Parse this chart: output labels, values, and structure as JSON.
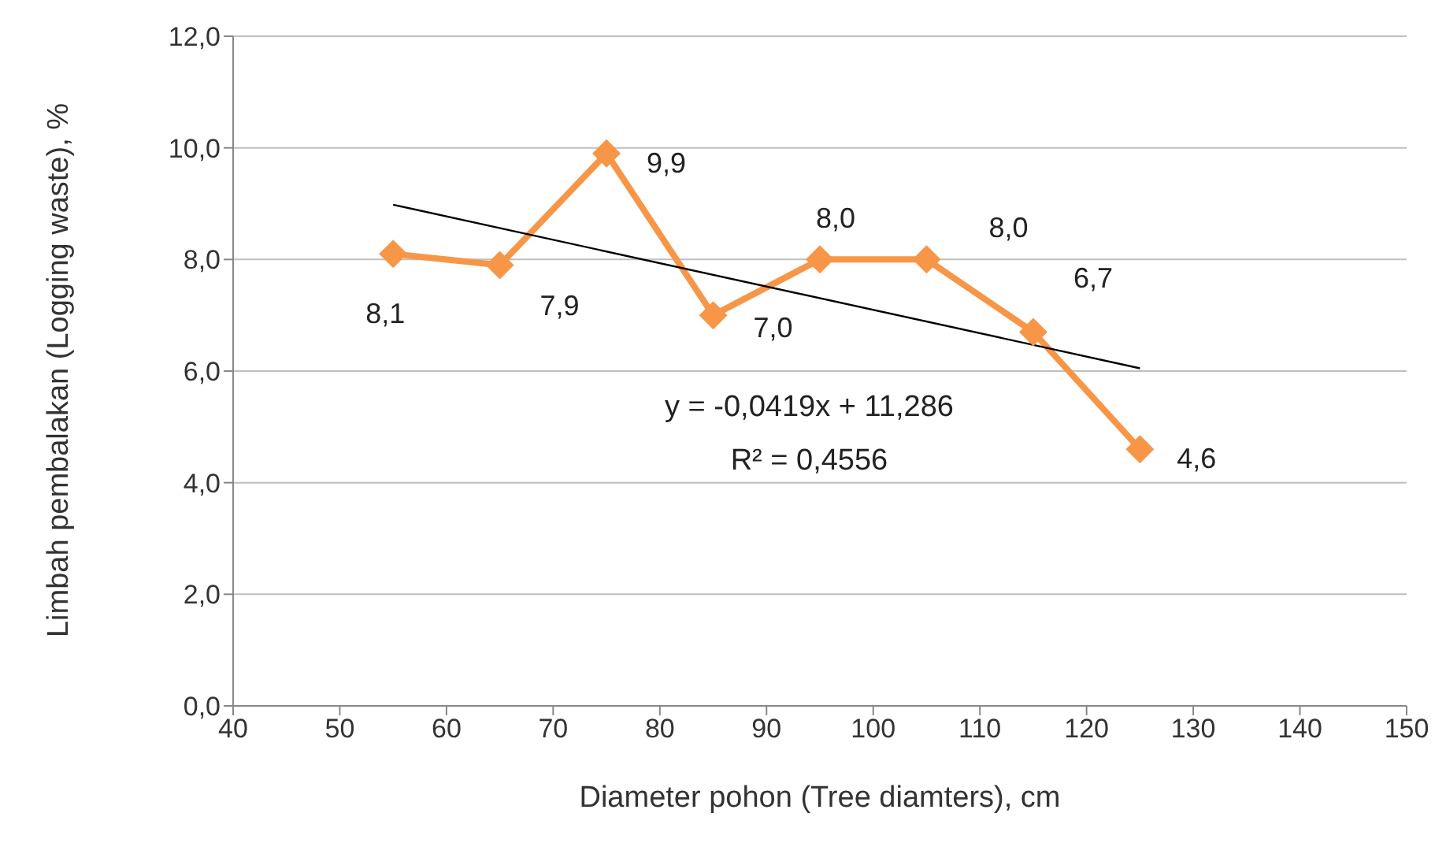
{
  "chart_data": {
    "type": "line",
    "xlabel": "Diameter pohon (Tree diamters), cm",
    "ylabel": "Limbah pembalakan (Logging waste), %",
    "x": [
      55,
      65,
      75,
      85,
      95,
      105,
      115,
      125
    ],
    "series": [
      {
        "color": "#f79646",
        "marker": "diamond",
        "values": [
          8.1,
          7.9,
          9.9,
          7.0,
          8.0,
          8.0,
          6.7,
          4.6
        ],
        "value_labels": [
          "8,1",
          "7,9",
          "9,9",
          "7,0",
          "8,0",
          "8,0",
          "6,7",
          "4,6"
        ]
      },
      {
        "color": "#000000",
        "marker": "none",
        "x": [
          55,
          125
        ],
        "values": [
          8.98,
          6.05
        ]
      }
    ],
    "annotations": [
      "y = -0,0419x + 11,286",
      "R² = 0,4556"
    ],
    "xlim": [
      40,
      150
    ],
    "xticks": [
      40,
      50,
      60,
      70,
      80,
      90,
      100,
      110,
      120,
      130,
      140,
      150
    ],
    "ylim": [
      0,
      12
    ],
    "yticks": [
      {
        "value": 0,
        "label": "0,0"
      },
      {
        "value": 2,
        "label": "2,0"
      },
      {
        "value": 4,
        "label": "4,0"
      },
      {
        "value": 6,
        "label": "6,0"
      },
      {
        "value": 8,
        "label": "8,0"
      },
      {
        "value": 10,
        "label": "10,0"
      },
      {
        "value": 12,
        "label": "12,0"
      }
    ],
    "grid": "y",
    "legend": false
  }
}
